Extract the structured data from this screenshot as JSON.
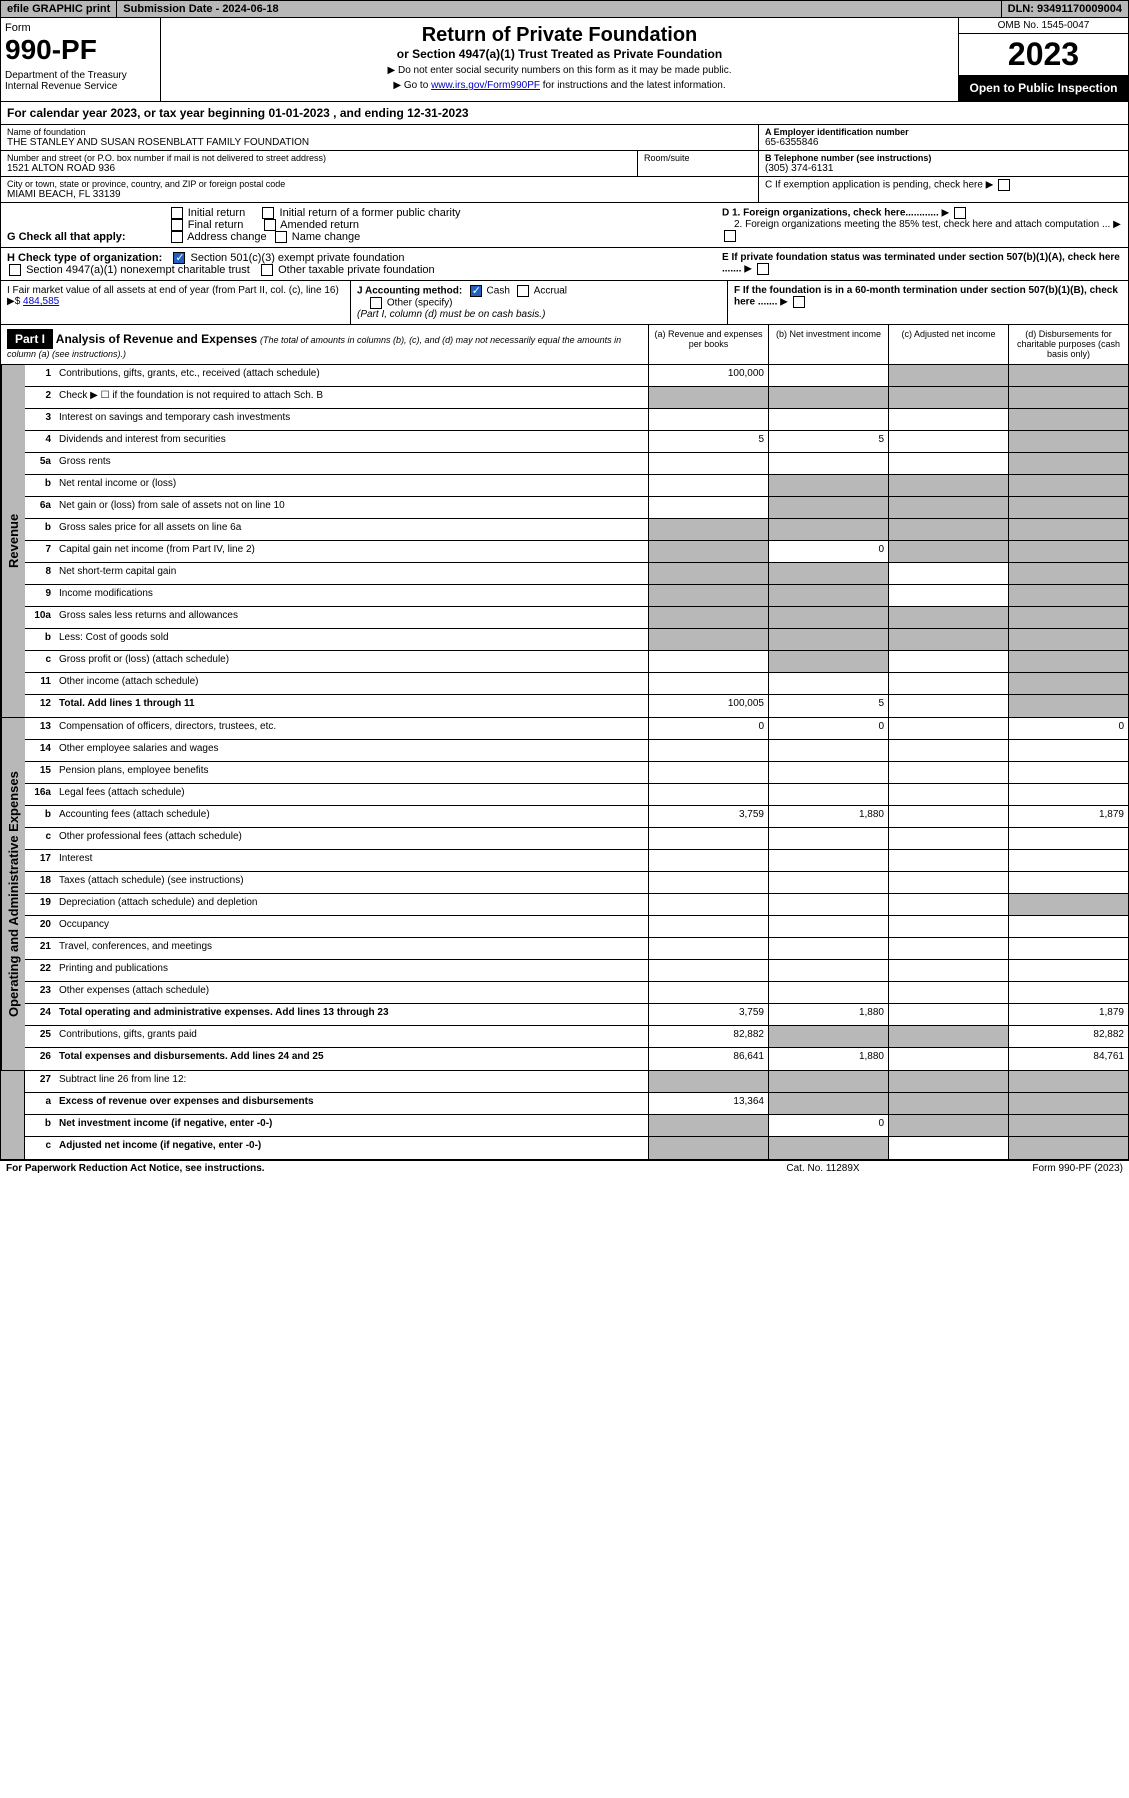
{
  "topbar": {
    "efile": "efile GRAPHIC print",
    "subdate": "Submission Date - 2024-06-18",
    "dln": "DLN: 93491170009004"
  },
  "header": {
    "form_label": "Form",
    "form_num": "990-PF",
    "dept": "Department of the Treasury\nInternal Revenue Service",
    "title": "Return of Private Foundation",
    "subtitle": "or Section 4947(a)(1) Trust Treated as Private Foundation",
    "note1": "▶ Do not enter social security numbers on this form as it may be made public.",
    "note2_prefix": "▶ Go to ",
    "note2_link": "www.irs.gov/Form990PF",
    "note2_suffix": " for instructions and the latest information.",
    "omb": "OMB No. 1545-0047",
    "year": "2023",
    "open": "Open to Public Inspection"
  },
  "cal_year": "For calendar year 2023, or tax year beginning 01-01-2023            , and ending 12-31-2023",
  "info": {
    "name_lbl": "Name of foundation",
    "name_val": "THE STANLEY AND SUSAN ROSENBLATT FAMILY FOUNDATION",
    "addr_lbl": "Number and street (or P.O. box number if mail is not delivered to street address)",
    "addr_val": "1521 ALTON ROAD 936",
    "room_lbl": "Room/suite",
    "city_lbl": "City or town, state or province, country, and ZIP or foreign postal code",
    "city_val": "MIAMI BEACH, FL  33139",
    "ein_lbl": "A Employer identification number",
    "ein_val": "65-6355846",
    "tel_lbl": "B Telephone number (see instructions)",
    "tel_val": "(305) 374-6131",
    "c_lbl": "C If exemption application is pending, check here",
    "d1_lbl": "D 1. Foreign organizations, check here............",
    "d2_lbl": "2. Foreign organizations meeting the 85% test, check here and attach computation ...",
    "e_lbl": "E  If private foundation status was terminated under section 507(b)(1)(A), check here .......",
    "f_lbl": "F  If the foundation is in a 60-month termination under section 507(b)(1)(B), check here ......."
  },
  "g": {
    "label": "G Check all that apply:",
    "opts": [
      "Initial return",
      "Final return",
      "Address change",
      "Initial return of a former public charity",
      "Amended return",
      "Name change"
    ]
  },
  "h": {
    "label": "H Check type of organization:",
    "opt1": "Section 501(c)(3) exempt private foundation",
    "opt2": "Section 4947(a)(1) nonexempt charitable trust",
    "opt3": "Other taxable private foundation"
  },
  "i": {
    "label": "I Fair market value of all assets at end of year (from Part II, col. (c), line 16) ▶$",
    "val": "484,585"
  },
  "j": {
    "label": "J Accounting method:",
    "cash": "Cash",
    "accrual": "Accrual",
    "other": "Other (specify)",
    "note": "(Part I, column (d) must be on cash basis.)"
  },
  "part1": {
    "label": "Part I",
    "title": "Analysis of Revenue and Expenses",
    "note": "(The total of amounts in columns (b), (c), and (d) may not necessarily equal the amounts in column (a) (see instructions).)",
    "col_a": "(a)    Revenue and expenses per books",
    "col_b": "(b)    Net investment income",
    "col_c": "(c)    Adjusted net income",
    "col_d": "(d)   Disbursements for charitable purposes (cash basis only)"
  },
  "sections": {
    "revenue": "Revenue",
    "expenses": "Operating and Administrative Expenses"
  },
  "rows": [
    {
      "n": "1",
      "desc": "Contributions, gifts, grants, etc., received (attach schedule)",
      "a": "100,000",
      "b": "",
      "c": "grey",
      "d": "grey"
    },
    {
      "n": "2",
      "desc": "Check ▶ ☐ if the foundation is not required to attach Sch. B",
      "a": "grey",
      "b": "grey",
      "c": "grey",
      "d": "grey"
    },
    {
      "n": "3",
      "desc": "Interest on savings and temporary cash investments",
      "a": "",
      "b": "",
      "c": "",
      "d": "grey"
    },
    {
      "n": "4",
      "desc": "Dividends and interest from securities",
      "a": "5",
      "b": "5",
      "c": "",
      "d": "grey"
    },
    {
      "n": "5a",
      "desc": "Gross rents",
      "a": "",
      "b": "",
      "c": "",
      "d": "grey"
    },
    {
      "n": "b",
      "desc": "Net rental income or (loss)",
      "a": "",
      "b": "grey",
      "c": "grey",
      "d": "grey"
    },
    {
      "n": "6a",
      "desc": "Net gain or (loss) from sale of assets not on line 10",
      "a": "",
      "b": "grey",
      "c": "grey",
      "d": "grey"
    },
    {
      "n": "b",
      "desc": "Gross sales price for all assets on line 6a",
      "a": "grey",
      "b": "grey",
      "c": "grey",
      "d": "grey"
    },
    {
      "n": "7",
      "desc": "Capital gain net income (from Part IV, line 2)",
      "a": "grey",
      "b": "0",
      "c": "grey",
      "d": "grey"
    },
    {
      "n": "8",
      "desc": "Net short-term capital gain",
      "a": "grey",
      "b": "grey",
      "c": "",
      "d": "grey"
    },
    {
      "n": "9",
      "desc": "Income modifications",
      "a": "grey",
      "b": "grey",
      "c": "",
      "d": "grey"
    },
    {
      "n": "10a",
      "desc": "Gross sales less returns and allowances",
      "a": "grey",
      "b": "grey",
      "c": "grey",
      "d": "grey"
    },
    {
      "n": "b",
      "desc": "Less: Cost of goods sold",
      "a": "grey",
      "b": "grey",
      "c": "grey",
      "d": "grey"
    },
    {
      "n": "c",
      "desc": "Gross profit or (loss) (attach schedule)",
      "a": "",
      "b": "grey",
      "c": "",
      "d": "grey"
    },
    {
      "n": "11",
      "desc": "Other income (attach schedule)",
      "a": "",
      "b": "",
      "c": "",
      "d": "grey"
    },
    {
      "n": "12",
      "desc": "Total. Add lines 1 through 11",
      "a": "100,005",
      "b": "5",
      "c": "",
      "d": "grey",
      "bold": true
    }
  ],
  "exp_rows": [
    {
      "n": "13",
      "desc": "Compensation of officers, directors, trustees, etc.",
      "a": "0",
      "b": "0",
      "c": "",
      "d": "0"
    },
    {
      "n": "14",
      "desc": "Other employee salaries and wages",
      "a": "",
      "b": "",
      "c": "",
      "d": ""
    },
    {
      "n": "15",
      "desc": "Pension plans, employee benefits",
      "a": "",
      "b": "",
      "c": "",
      "d": ""
    },
    {
      "n": "16a",
      "desc": "Legal fees (attach schedule)",
      "a": "",
      "b": "",
      "c": "",
      "d": ""
    },
    {
      "n": "b",
      "desc": "Accounting fees (attach schedule)",
      "a": "3,759",
      "b": "1,880",
      "c": "",
      "d": "1,879"
    },
    {
      "n": "c",
      "desc": "Other professional fees (attach schedule)",
      "a": "",
      "b": "",
      "c": "",
      "d": ""
    },
    {
      "n": "17",
      "desc": "Interest",
      "a": "",
      "b": "",
      "c": "",
      "d": ""
    },
    {
      "n": "18",
      "desc": "Taxes (attach schedule) (see instructions)",
      "a": "",
      "b": "",
      "c": "",
      "d": ""
    },
    {
      "n": "19",
      "desc": "Depreciation (attach schedule) and depletion",
      "a": "",
      "b": "",
      "c": "",
      "d": "grey"
    },
    {
      "n": "20",
      "desc": "Occupancy",
      "a": "",
      "b": "",
      "c": "",
      "d": ""
    },
    {
      "n": "21",
      "desc": "Travel, conferences, and meetings",
      "a": "",
      "b": "",
      "c": "",
      "d": ""
    },
    {
      "n": "22",
      "desc": "Printing and publications",
      "a": "",
      "b": "",
      "c": "",
      "d": ""
    },
    {
      "n": "23",
      "desc": "Other expenses (attach schedule)",
      "a": "",
      "b": "",
      "c": "",
      "d": ""
    },
    {
      "n": "24",
      "desc": "Total operating and administrative expenses. Add lines 13 through 23",
      "a": "3,759",
      "b": "1,880",
      "c": "",
      "d": "1,879",
      "bold": true
    },
    {
      "n": "25",
      "desc": "Contributions, gifts, grants paid",
      "a": "82,882",
      "b": "grey",
      "c": "grey",
      "d": "82,882"
    },
    {
      "n": "26",
      "desc": "Total expenses and disbursements. Add lines 24 and 25",
      "a": "86,641",
      "b": "1,880",
      "c": "",
      "d": "84,761",
      "bold": true
    }
  ],
  "net_rows": [
    {
      "n": "27",
      "desc": "Subtract line 26 from line 12:",
      "a": "grey",
      "b": "grey",
      "c": "grey",
      "d": "grey"
    },
    {
      "n": "a",
      "desc": "Excess of revenue over expenses and disbursements",
      "a": "13,364",
      "b": "grey",
      "c": "grey",
      "d": "grey",
      "bold": true
    },
    {
      "n": "b",
      "desc": "Net investment income (if negative, enter -0-)",
      "a": "grey",
      "b": "0",
      "c": "grey",
      "d": "grey",
      "bold": true
    },
    {
      "n": "c",
      "desc": "Adjusted net income (if negative, enter -0-)",
      "a": "grey",
      "b": "grey",
      "c": "",
      "d": "grey",
      "bold": true
    }
  ],
  "footer": {
    "left": "For Paperwork Reduction Act Notice, see instructions.",
    "mid": "Cat. No. 11289X",
    "right": "Form 990-PF (2023)"
  }
}
